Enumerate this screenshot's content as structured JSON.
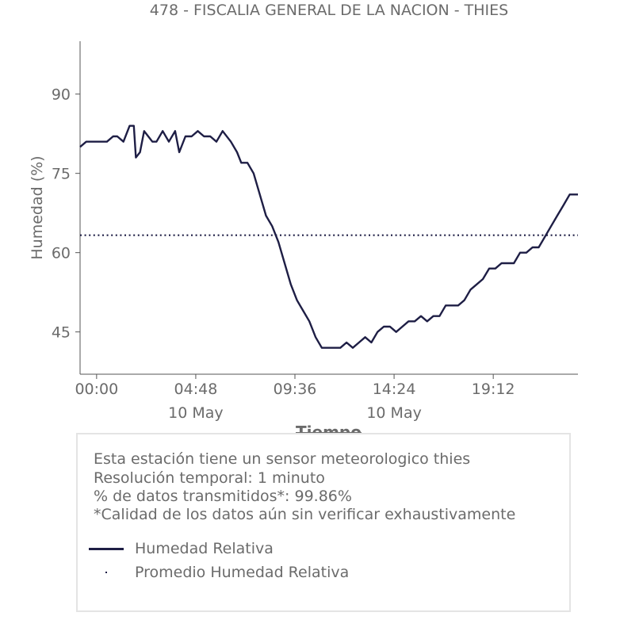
{
  "chart_data": {
    "type": "line",
    "title": "478 - FISCALIA GENERAL DE LA NACION - THIES",
    "xlabel": "Tiempo",
    "ylabel": "Humedad (%)",
    "x_ticks": [
      {
        "h": 0.0,
        "label": "00:00",
        "sublabel": ""
      },
      {
        "h": 4.8,
        "label": "04:48",
        "sublabel": "10 May"
      },
      {
        "h": 9.6,
        "label": "09:36",
        "sublabel": ""
      },
      {
        "h": 14.4,
        "label": "14:24",
        "sublabel": "10 May"
      },
      {
        "h": 19.2,
        "label": "19:12",
        "sublabel": ""
      }
    ],
    "x_range_hours": [
      -0.8,
      23.3
    ],
    "y_ticks": [
      45,
      60,
      75,
      90
    ],
    "ylim": [
      37,
      100
    ],
    "grid": false,
    "series": [
      {
        "name": "Humedad Relativa",
        "color": "#1e1e45",
        "style": "solid",
        "x_hours": [
          -0.8,
          -0.5,
          0.0,
          0.5,
          0.8,
          1.0,
          1.3,
          1.6,
          1.8,
          1.9,
          2.1,
          2.3,
          2.5,
          2.7,
          2.9,
          3.2,
          3.5,
          3.8,
          4.0,
          4.3,
          4.6,
          4.9,
          5.2,
          5.5,
          5.8,
          6.1,
          6.5,
          6.8,
          7.0,
          7.3,
          7.6,
          7.9,
          8.2,
          8.5,
          8.8,
          9.1,
          9.4,
          9.7,
          10.0,
          10.3,
          10.6,
          10.9,
          11.2,
          11.5,
          11.8,
          12.1,
          12.4,
          12.7,
          13.0,
          13.3,
          13.6,
          13.9,
          14.2,
          14.5,
          14.8,
          15.1,
          15.4,
          15.7,
          16.0,
          16.3,
          16.6,
          16.9,
          17.2,
          17.5,
          17.8,
          18.1,
          18.4,
          18.7,
          19.0,
          19.3,
          19.6,
          19.9,
          20.2,
          20.5,
          20.8,
          21.1,
          21.4,
          21.7,
          22.0,
          22.3,
          22.6,
          22.9,
          23.3
        ],
        "y": [
          80,
          81,
          81,
          81,
          82,
          82,
          81,
          84,
          84,
          78,
          79,
          83,
          82,
          81,
          81,
          83,
          81,
          83,
          79,
          82,
          82,
          83,
          82,
          82,
          81,
          83,
          81,
          79,
          77,
          77,
          75,
          71,
          67,
          65,
          62,
          58,
          54,
          51,
          49,
          47,
          44,
          42,
          42,
          42,
          42,
          43,
          42,
          43,
          44,
          43,
          45,
          46,
          46,
          45,
          46,
          47,
          47,
          48,
          47,
          48,
          48,
          50,
          50,
          50,
          51,
          53,
          54,
          55,
          57,
          57,
          58,
          58,
          58,
          60,
          60,
          61,
          61,
          63,
          65,
          67,
          69,
          71,
          71
        ]
      },
      {
        "name": "Promedio Humedad Relativa",
        "color": "#1e1e45",
        "style": "dotted",
        "value": 63.3
      }
    ]
  },
  "info": {
    "lines": [
      "Esta estación tiene un sensor meteorologico thies",
      "Resolución temporal: 1 minuto",
      "% de datos transmitidos*: 99.86%",
      "*Calidad de los datos aún sin verificar exhaustivamente"
    ]
  }
}
